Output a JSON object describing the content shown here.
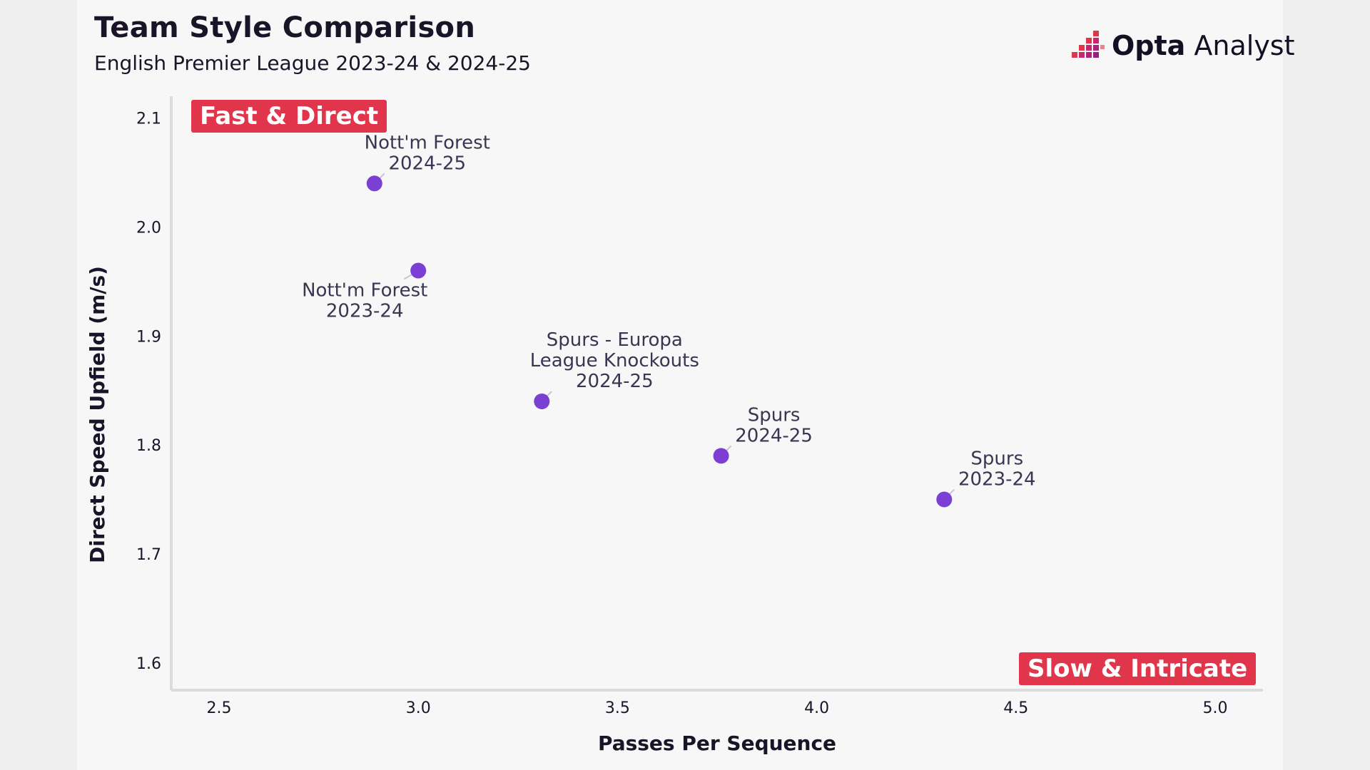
{
  "title": "Team Style Comparison",
  "subtitle": "English Premier League 2023-24 & 2024-25",
  "brand": {
    "strong": "Opta",
    "rest": " Analyst",
    "accent_color": "#e0354a"
  },
  "quadrants": {
    "top_left": "Fast & Direct",
    "bottom_right": "Slow & Intricate"
  },
  "colors": {
    "point": "#7b3fd4",
    "badge": "#e0354a",
    "axis": "#dcdcdc",
    "leader": "#c9c4d4"
  },
  "chart_data": {
    "type": "scatter",
    "xlabel": "Passes Per Sequence",
    "ylabel": "Direct Speed Upfield (m/s)",
    "xlim": [
      2.38,
      5.12
    ],
    "ylim": [
      1.575,
      2.12
    ],
    "xticks": [
      "2.5",
      "3.0",
      "3.5",
      "4.0",
      "4.5",
      "5.0"
    ],
    "yticks": [
      "1.6",
      "1.7",
      "1.8",
      "1.9",
      "2.0",
      "2.1"
    ],
    "points": [
      {
        "x": 2.89,
        "y": 2.04,
        "label": [
          "Nott'm Forest",
          "2024-25"
        ],
        "label_pos": "above-right"
      },
      {
        "x": 3.0,
        "y": 1.96,
        "label": [
          "Nott'm Forest",
          "2023-24"
        ],
        "label_pos": "below-left"
      },
      {
        "x": 3.31,
        "y": 1.84,
        "label": [
          "Spurs - Europa",
          "League Knockouts",
          "2024-25"
        ],
        "label_pos": "above-right"
      },
      {
        "x": 3.76,
        "y": 1.79,
        "label": [
          "Spurs",
          "2024-25"
        ],
        "label_pos": "above-right"
      },
      {
        "x": 4.32,
        "y": 1.75,
        "label": [
          "Spurs",
          "2023-24"
        ],
        "label_pos": "above-right"
      }
    ]
  }
}
